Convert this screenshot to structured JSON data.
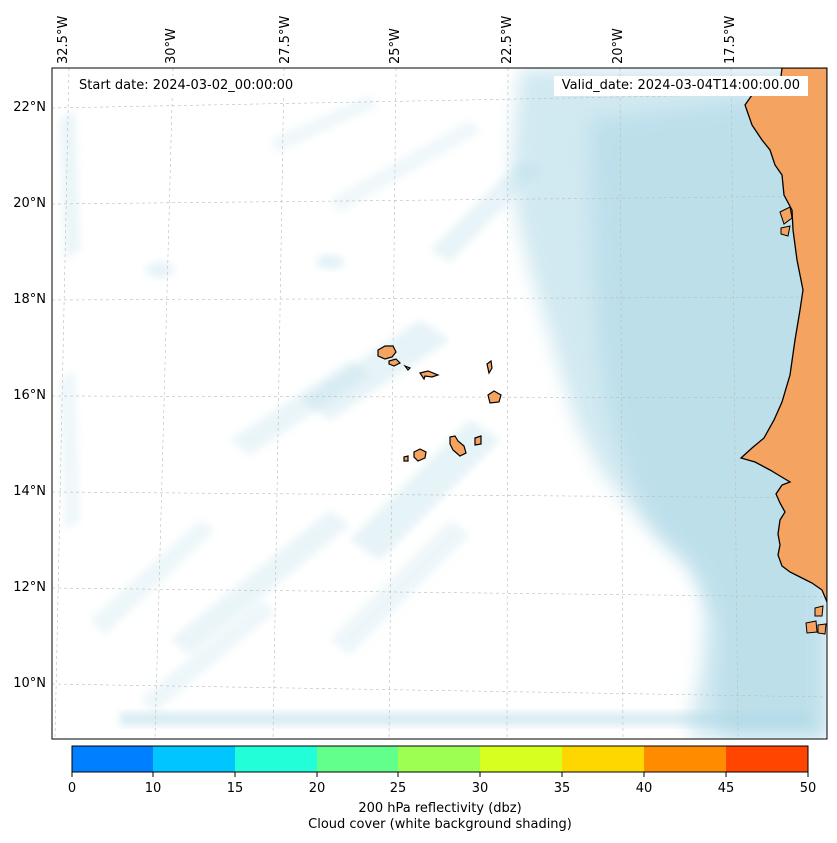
{
  "map": {
    "start_date": "Start date: 2024-03-02_00:00:00",
    "valid_date": "Valid_date: 2024-03-04T14:00:00.00",
    "lon_ticks": [
      {
        "label": "32.5°W",
        "lon": -32.5
      },
      {
        "label": "30°W",
        "lon": -30
      },
      {
        "label": "27.5°W",
        "lon": -27.5
      },
      {
        "label": "25°W",
        "lon": -25
      },
      {
        "label": "22.5°W",
        "lon": -22.5
      },
      {
        "label": "20°W",
        "lon": -20
      },
      {
        "label": "17.5°W",
        "lon": -17.5
      }
    ],
    "lat_ticks": [
      {
        "label": "22°N",
        "lat": 22
      },
      {
        "label": "20°N",
        "lat": 20
      },
      {
        "label": "18°N",
        "lat": 18
      },
      {
        "label": "16°N",
        "lat": 16
      },
      {
        "label": "14°N",
        "lat": 14
      },
      {
        "label": "12°N",
        "lat": 12
      },
      {
        "label": "10°N",
        "lat": 10
      }
    ],
    "colors": {
      "land": "#f4a460",
      "cloud": "#add8e6",
      "coastline": "#000000",
      "gridline": "#bbbbbb"
    },
    "features": [
      "Cape Verde islands",
      "West African coast"
    ]
  },
  "colorbar": {
    "ticks": [
      "0",
      "10",
      "15",
      "20",
      "25",
      "30",
      "35",
      "40",
      "45",
      "50"
    ],
    "colors": [
      "#0080ff",
      "#00c5ff",
      "#22ffd8",
      "#63ff8b",
      "#9dff52",
      "#d7ff1f",
      "#ffd700",
      "#ff8c00",
      "#ff4500"
    ],
    "label_line1": "200 hPa reflectivity (dbz)",
    "label_line2": "Cloud cover (white background shading)"
  }
}
